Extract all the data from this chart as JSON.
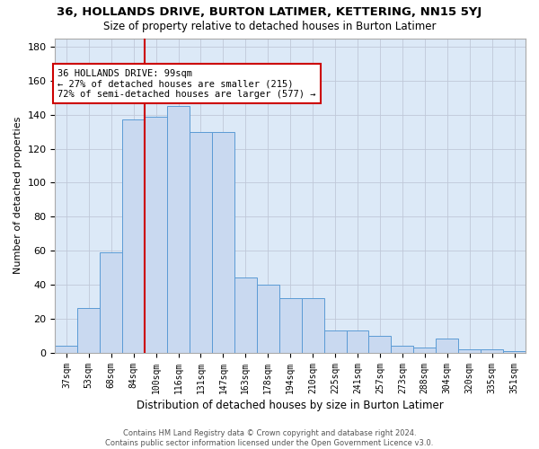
{
  "title": "36, HOLLANDS DRIVE, BURTON LATIMER, KETTERING, NN15 5YJ",
  "subtitle": "Size of property relative to detached houses in Burton Latimer",
  "xlabel": "Distribution of detached houses by size in Burton Latimer",
  "ylabel": "Number of detached properties",
  "bin_labels": [
    "37sqm",
    "53sqm",
    "68sqm",
    "84sqm",
    "100sqm",
    "116sqm",
    "131sqm",
    "147sqm",
    "163sqm",
    "178sqm",
    "194sqm",
    "210sqm",
    "225sqm",
    "241sqm",
    "257sqm",
    "273sqm",
    "288sqm",
    "304sqm",
    "320sqm",
    "335sqm",
    "351sqm"
  ],
  "values": [
    4,
    26,
    59,
    137,
    139,
    145,
    130,
    130,
    44,
    40,
    32,
    32,
    13,
    13,
    10,
    4,
    3,
    8,
    2,
    2,
    1
  ],
  "bar_color": "#c9d9f0",
  "bar_edge_color": "#5b9bd5",
  "grid_color": "#c0c8d8",
  "background_color": "#dce9f7",
  "annotation_line1": "36 HOLLANDS DRIVE: 99sqm",
  "annotation_line2": "← 27% of detached houses are smaller (215)",
  "annotation_line3": "72% of semi-detached houses are larger (577) →",
  "annotation_box_color": "#ffffff",
  "annotation_box_edge": "#cc0000",
  "marker_color": "#cc0000",
  "ylim": [
    0,
    185
  ],
  "yticks": [
    0,
    20,
    40,
    60,
    80,
    100,
    120,
    140,
    160,
    180
  ],
  "footer1": "Contains HM Land Registry data © Crown copyright and database right 2024.",
  "footer2": "Contains public sector information licensed under the Open Government Licence v3.0."
}
